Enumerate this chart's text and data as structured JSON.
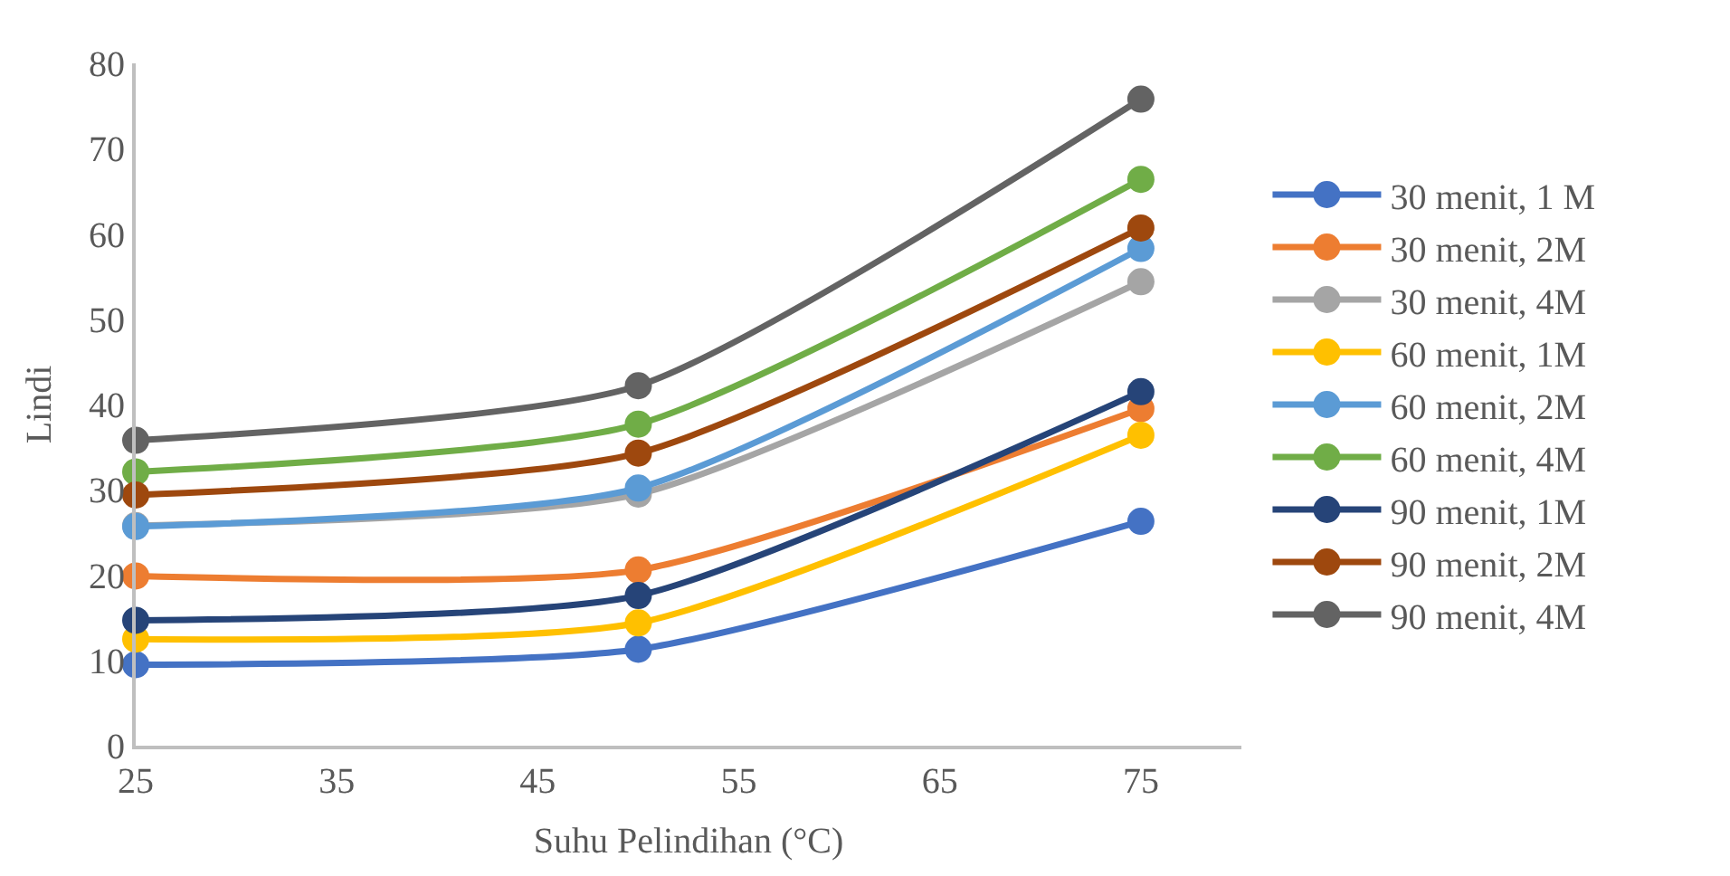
{
  "chart_data": {
    "type": "line",
    "xlabel": "Suhu Pelindihan (°C)",
    "ylabel": "Lindi",
    "x": [
      25,
      50,
      75
    ],
    "xlim": [
      25,
      80
    ],
    "xticks": [
      25,
      35,
      45,
      55,
      65,
      75
    ],
    "ylim": [
      0,
      80
    ],
    "yticks": [
      0,
      10,
      20,
      30,
      40,
      50,
      60,
      70,
      80
    ],
    "legend": "right",
    "marker": "circle",
    "line_style": "solid",
    "series": [
      {
        "name": "30 menit, 1 M",
        "color": "#4472c4",
        "values": [
          9.5,
          11.3,
          26.3
        ]
      },
      {
        "name": "30 menit, 2M",
        "color": "#ed7d31",
        "values": [
          19.9,
          20.6,
          39.5
        ]
      },
      {
        "name": "30 menit, 4M",
        "color": "#a5a5a5",
        "values": [
          25.8,
          29.5,
          54.4
        ]
      },
      {
        "name": "60 menit, 1M",
        "color": "#ffc000",
        "values": [
          12.5,
          14.4,
          36.4
        ]
      },
      {
        "name": "60 menit, 2M",
        "color": "#5b9bd5",
        "values": [
          25.7,
          30.2,
          58.3
        ]
      },
      {
        "name": "60 menit, 4M",
        "color": "#70ad47",
        "values": [
          32.1,
          37.7,
          66.4
        ]
      },
      {
        "name": "90 menit, 1M",
        "color": "#264478",
        "values": [
          14.7,
          17.6,
          41.5
        ]
      },
      {
        "name": "90 menit, 2M",
        "color": "#9e480e",
        "values": [
          29.4,
          34.3,
          60.7
        ]
      },
      {
        "name": "90 menit, 4M",
        "color": "#636363",
        "values": [
          35.8,
          42.2,
          75.8
        ]
      }
    ]
  }
}
